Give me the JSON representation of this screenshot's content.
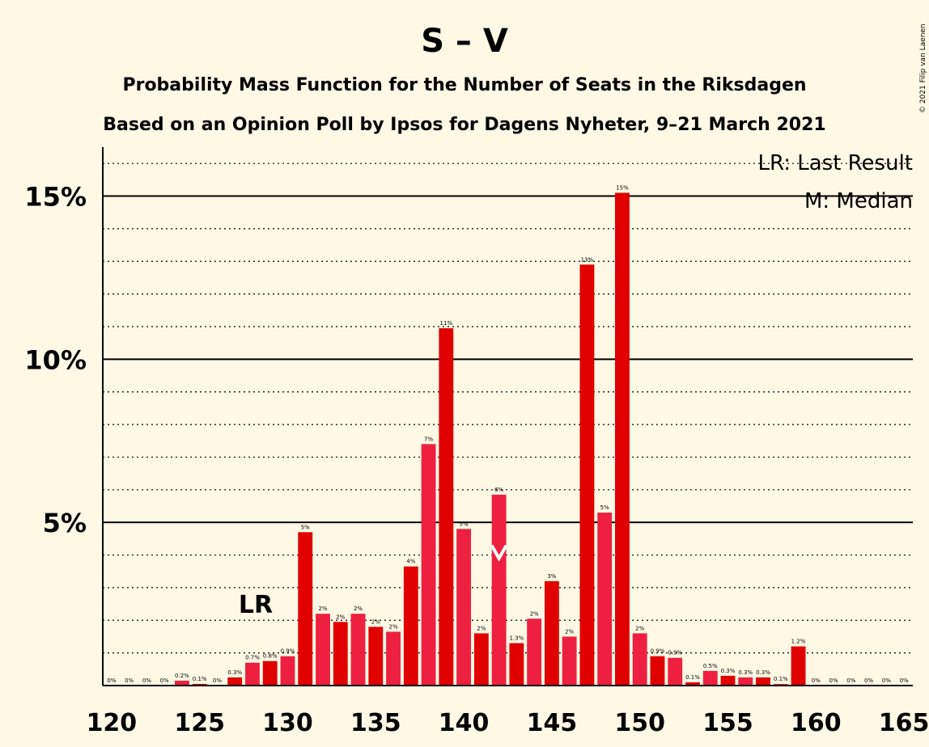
{
  "page": {
    "title": "S – V",
    "subtitle1": "Probability Mass Function for the Number of Seats in the Riksdagen",
    "subtitle2": "Based on an Opinion Poll by Ipsos for Dagens Nyheter, 9–21 March 2021",
    "copyright": "© 2021 Filip van Laenen"
  },
  "legend": {
    "lr": "LR: Last Result",
    "median": "M: Median"
  },
  "markers": {
    "last_result_label": "LR",
    "last_result_seat": 128,
    "median_seat": 142
  },
  "colors": {
    "background": "#FEF8E4",
    "bar_dark": "#E00000",
    "bar_light": "#EE2040",
    "axis": "#000000"
  },
  "chart_data": {
    "type": "bar",
    "x": [
      120,
      121,
      122,
      123,
      124,
      125,
      126,
      127,
      128,
      129,
      130,
      131,
      132,
      133,
      134,
      135,
      136,
      137,
      138,
      139,
      140,
      141,
      142,
      143,
      144,
      145,
      146,
      147,
      148,
      149,
      150,
      151,
      152,
      153,
      154,
      155,
      156,
      157,
      158,
      159,
      160,
      161,
      162,
      163,
      164,
      165
    ],
    "values": [
      0,
      0,
      0,
      0,
      0.15,
      0.05,
      0,
      0.25,
      0.7,
      0.75,
      0.9,
      4.7,
      2.2,
      1.95,
      2.2,
      1.8,
      1.65,
      3.65,
      7.4,
      10.95,
      4.8,
      1.6,
      5.85,
      1.3,
      2.05,
      3.2,
      1.5,
      12.9,
      5.3,
      15.1,
      1.6,
      0.9,
      0.85,
      0.1,
      0.45,
      0.3,
      0.25,
      0.25,
      0.05,
      1.2,
      0,
      0,
      0,
      0,
      0,
      0
    ],
    "labels": [
      "0%",
      "0%",
      "0%",
      "0%",
      "0.2%",
      "0.1%",
      "0%",
      "0.3%",
      "0.7%",
      "0.8%",
      "0.9%",
      "5%",
      "2%",
      "2%",
      "2%",
      "2%",
      "2%",
      "4%",
      "7%",
      "11%",
      "5%",
      "2%",
      "6%",
      "1.3%",
      "2%",
      "3%",
      "2%",
      "13%",
      "5%",
      "15%",
      "2%",
      "0.9%",
      "0.9%",
      "0.1%",
      "0.5%",
      "0.3%",
      "0.3%",
      "0.3%",
      "0.1%",
      "1.2%",
      "0%",
      "0%",
      "0%",
      "0%",
      "0%",
      "0%"
    ],
    "xticks": [
      120,
      125,
      130,
      135,
      140,
      145,
      150,
      155,
      160,
      165
    ],
    "yticks": [
      5,
      10,
      15
    ],
    "ytick_labels": [
      "5%",
      "10%",
      "15%"
    ],
    "ylim": [
      0,
      16.5
    ],
    "xlim": [
      119.5,
      165.5
    ],
    "grid": "dotted every 1%, solid every 5%"
  }
}
